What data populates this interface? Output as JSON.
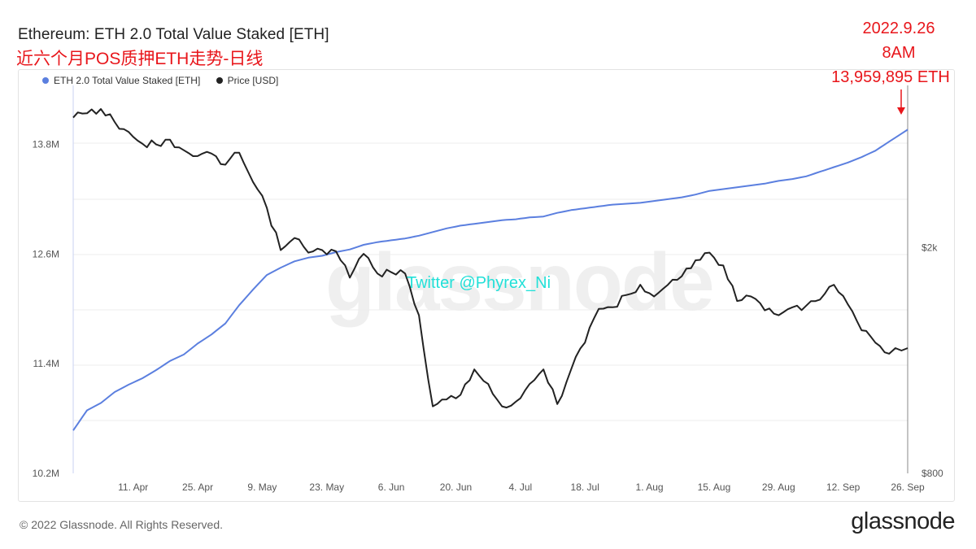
{
  "header": {
    "title": "Ethereum: ETH 2.0 Total Value Staked [ETH]",
    "subtitle": "近六个月POS质押ETH走势-日线"
  },
  "annotation": {
    "date": "2022.9.26",
    "time": "8AM",
    "value": "13,959,895 ETH",
    "color": "#e8161b"
  },
  "watermark": "glassnode",
  "twitter": "Twitter @Phyrex_Ni",
  "footer": {
    "copyright": "© 2022 Glassnode. All Rights Reserved.",
    "logo": "glassnode"
  },
  "chart_data": {
    "type": "line",
    "x_ticks": [
      "11. Apr",
      "25. Apr",
      "9. May",
      "23. May",
      "6. Jun",
      "20. Jun",
      "4. Jul",
      "18. Jul",
      "1. Aug",
      "15. Aug",
      "29. Aug",
      "12. Sep",
      "26. Sep"
    ],
    "left_axis": {
      "ticks": [
        "13.8M",
        "12.6M",
        "11.4M",
        "10.2M"
      ],
      "range": [
        10.2,
        14.4
      ],
      "unit": "M ETH"
    },
    "right_axis": {
      "ticks": [
        "$2k",
        "$800"
      ],
      "scale": "log",
      "range": [
        800,
        3800
      ]
    },
    "grid": true,
    "legend_placement": "top-left",
    "series": [
      {
        "name": "ETH 2.0 Total Value Staked [ETH]",
        "color": "#5b7fdf",
        "axis": "left",
        "x": [
          "2022-03-29",
          "2022-04-01",
          "2022-04-04",
          "2022-04-07",
          "2022-04-10",
          "2022-04-13",
          "2022-04-16",
          "2022-04-19",
          "2022-04-22",
          "2022-04-25",
          "2022-04-28",
          "2022-05-01",
          "2022-05-04",
          "2022-05-07",
          "2022-05-10",
          "2022-05-13",
          "2022-05-16",
          "2022-05-19",
          "2022-05-22",
          "2022-05-25",
          "2022-05-28",
          "2022-05-31",
          "2022-06-03",
          "2022-06-06",
          "2022-06-09",
          "2022-06-12",
          "2022-06-15",
          "2022-06-18",
          "2022-06-21",
          "2022-06-24",
          "2022-06-27",
          "2022-06-30",
          "2022-07-03",
          "2022-07-06",
          "2022-07-09",
          "2022-07-12",
          "2022-07-15",
          "2022-07-18",
          "2022-07-21",
          "2022-07-24",
          "2022-07-27",
          "2022-07-30",
          "2022-08-02",
          "2022-08-05",
          "2022-08-08",
          "2022-08-11",
          "2022-08-14",
          "2022-08-17",
          "2022-08-20",
          "2022-08-23",
          "2022-08-26",
          "2022-08-29",
          "2022-09-01",
          "2022-09-04",
          "2022-09-07",
          "2022-09-10",
          "2022-09-13",
          "2022-09-16",
          "2022-09-19",
          "2022-09-22",
          "2022-09-26"
        ],
        "values": [
          10.67,
          10.89,
          10.97,
          11.09,
          11.17,
          11.24,
          11.33,
          11.43,
          11.5,
          11.62,
          11.72,
          11.84,
          12.04,
          12.21,
          12.37,
          12.45,
          12.52,
          12.56,
          12.58,
          12.62,
          12.65,
          12.7,
          12.73,
          12.75,
          12.77,
          12.8,
          12.84,
          12.88,
          12.91,
          12.93,
          12.95,
          12.97,
          12.98,
          13.0,
          13.01,
          13.05,
          13.08,
          13.1,
          13.12,
          13.14,
          13.15,
          13.16,
          13.18,
          13.2,
          13.22,
          13.25,
          13.29,
          13.31,
          13.33,
          13.35,
          13.37,
          13.4,
          13.42,
          13.45,
          13.5,
          13.55,
          13.6,
          13.66,
          13.73,
          13.83,
          13.96
        ]
      },
      {
        "name": "Price [USD]",
        "color": "#222222",
        "axis": "right",
        "x": [
          "2022-03-29",
          "2022-04-01",
          "2022-04-04",
          "2022-04-07",
          "2022-04-10",
          "2022-04-13",
          "2022-04-16",
          "2022-04-19",
          "2022-04-22",
          "2022-04-25",
          "2022-04-28",
          "2022-05-01",
          "2022-05-04",
          "2022-05-07",
          "2022-05-10",
          "2022-05-13",
          "2022-05-16",
          "2022-05-19",
          "2022-05-22",
          "2022-05-25",
          "2022-05-28",
          "2022-05-31",
          "2022-06-03",
          "2022-06-06",
          "2022-06-09",
          "2022-06-12",
          "2022-06-15",
          "2022-06-18",
          "2022-06-21",
          "2022-06-24",
          "2022-06-27",
          "2022-06-30",
          "2022-07-03",
          "2022-07-06",
          "2022-07-09",
          "2022-07-12",
          "2022-07-15",
          "2022-07-18",
          "2022-07-21",
          "2022-07-24",
          "2022-07-27",
          "2022-07-30",
          "2022-08-02",
          "2022-08-05",
          "2022-08-08",
          "2022-08-11",
          "2022-08-14",
          "2022-08-17",
          "2022-08-20",
          "2022-08-23",
          "2022-08-26",
          "2022-08-29",
          "2022-09-01",
          "2022-09-04",
          "2022-09-07",
          "2022-09-10",
          "2022-09-13",
          "2022-09-16",
          "2022-09-19",
          "2022-09-22",
          "2022-09-26"
        ],
        "values": [
          3390,
          3450,
          3510,
          3330,
          3200,
          3050,
          3040,
          3100,
          2970,
          2900,
          2930,
          2800,
          2940,
          2610,
          2350,
          1980,
          2080,
          1960,
          1980,
          1970,
          1770,
          1950,
          1800,
          1810,
          1800,
          1520,
          1050,
          1080,
          1100,
          1220,
          1150,
          1050,
          1070,
          1150,
          1220,
          1060,
          1220,
          1360,
          1560,
          1570,
          1650,
          1720,
          1640,
          1720,
          1780,
          1900,
          1960,
          1860,
          1610,
          1640,
          1550,
          1520,
          1570,
          1580,
          1620,
          1720,
          1590,
          1430,
          1360,
          1300,
          1330
        ]
      }
    ]
  }
}
